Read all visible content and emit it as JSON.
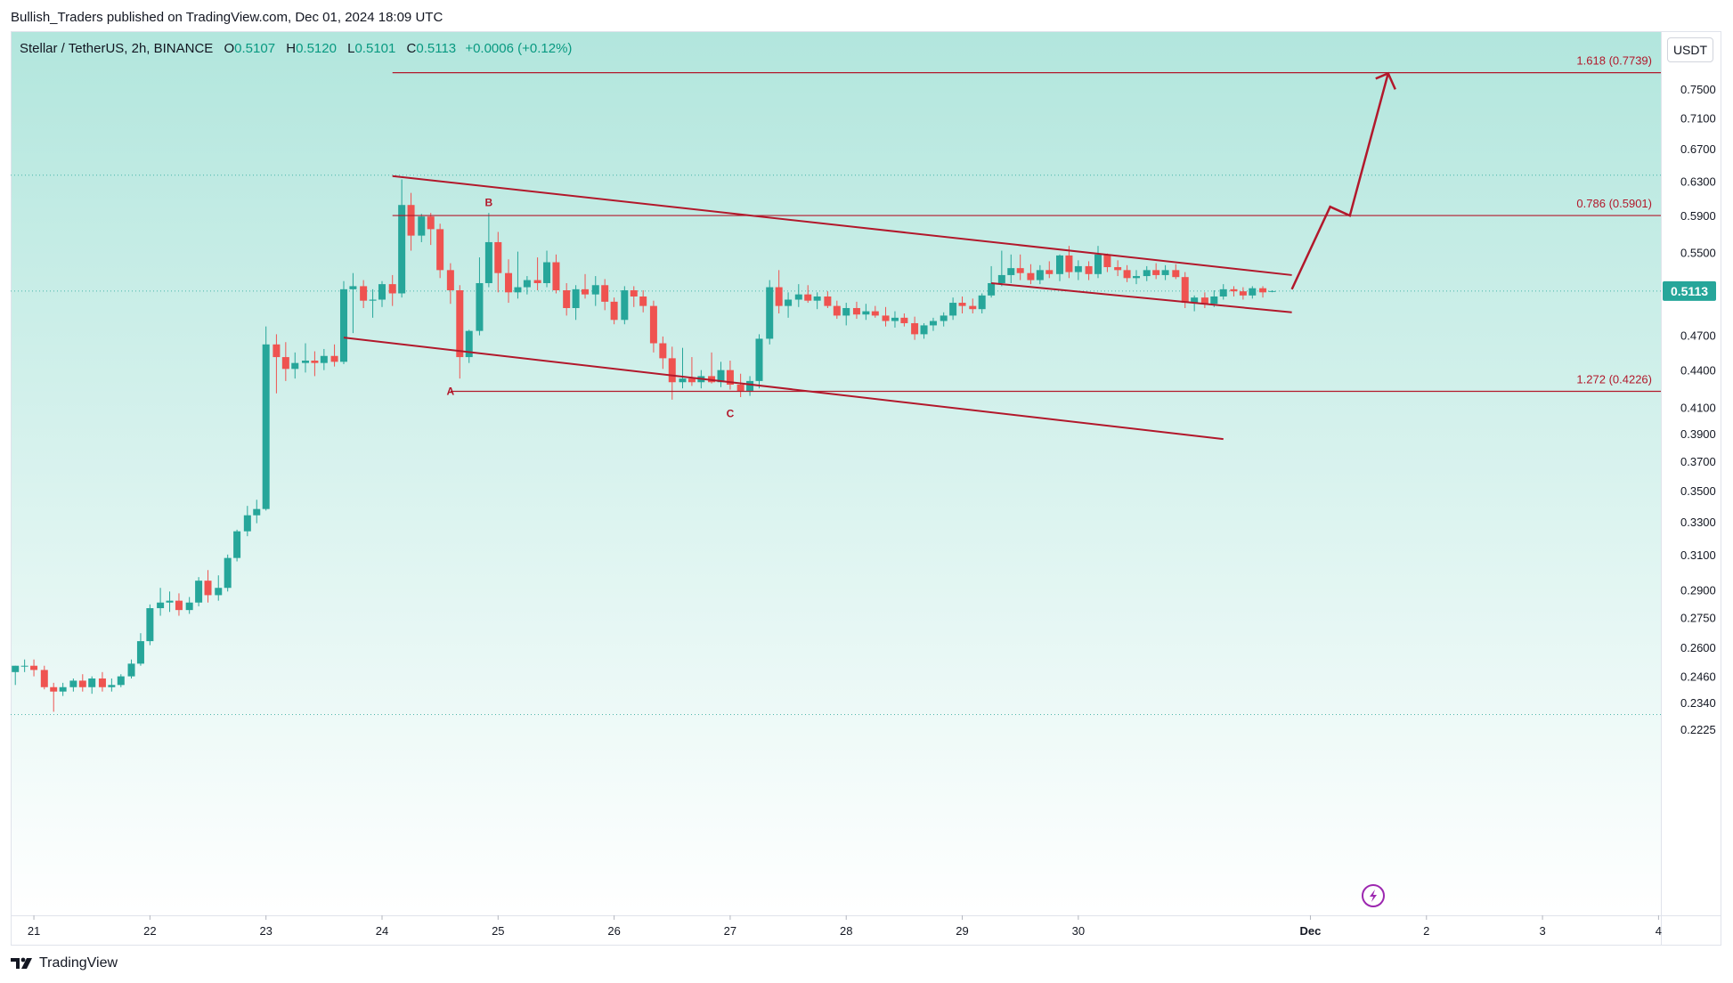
{
  "header": {
    "caption": "Bullish_Traders published on TradingView.com, Dec 01, 2024 18:09 UTC"
  },
  "symbol": {
    "name": "Stellar / TetherUS, 2h, BINANCE",
    "o_label": "O",
    "o_value": "0.5107",
    "h_label": "H",
    "h_value": "0.5120",
    "l_label": "L",
    "l_value": "0.5101",
    "c_label": "C",
    "c_value": "0.5113",
    "change": "+0.0006 (+0.12%)"
  },
  "currency_button": "USDT",
  "brand": {
    "name": "TradingView",
    "logo_icon": "tradingview-logo-icon"
  },
  "colors": {
    "up": "#26a69a",
    "down": "#ef5350",
    "drawing": "#b2182b",
    "bg_top": "#b2e6dd",
    "bg_bottom": "#ffffff",
    "price_label_bg": "#26a69a",
    "flash_icon": "#9c27b0"
  },
  "chart_data": {
    "type": "candlestick",
    "title": "Stellar / TetherUS, 2h, BINANCE",
    "y_scale": "log",
    "ylim": [
      0.2225,
      0.78
    ],
    "y_ticks": [
      "0.7500",
      "0.7100",
      "0.6700",
      "0.6300",
      "0.5900",
      "0.5500",
      "0.4700",
      "0.4400",
      "0.4100",
      "0.3900",
      "0.3700",
      "0.3500",
      "0.3300",
      "0.3100",
      "0.2900",
      "0.2750",
      "0.2600",
      "0.2460",
      "0.2340",
      "0.2225"
    ],
    "x_ticks": [
      "21",
      "22",
      "23",
      "24",
      "25",
      "26",
      "27",
      "28",
      "29",
      "30",
      "Dec",
      "2",
      "3",
      "4"
    ],
    "x_range_days": [
      20.8,
      35.02
    ],
    "last_price": "0.5113",
    "candles": [
      {
        "x": 20.84,
        "o": 0.248,
        "h": 0.251,
        "l": 0.242,
        "c": 0.251
      },
      {
        "x": 20.92,
        "o": 0.251,
        "h": 0.254,
        "l": 0.248,
        "c": 0.251
      },
      {
        "x": 21.0,
        "o": 0.251,
        "h": 0.254,
        "l": 0.246,
        "c": 0.249
      },
      {
        "x": 21.09,
        "o": 0.249,
        "h": 0.251,
        "l": 0.24,
        "c": 0.241
      },
      {
        "x": 21.17,
        "o": 0.241,
        "h": 0.243,
        "l": 0.23,
        "c": 0.239
      },
      {
        "x": 21.25,
        "o": 0.239,
        "h": 0.243,
        "l": 0.237,
        "c": 0.241
      },
      {
        "x": 21.34,
        "o": 0.241,
        "h": 0.245,
        "l": 0.239,
        "c": 0.244
      },
      {
        "x": 21.42,
        "o": 0.244,
        "h": 0.247,
        "l": 0.239,
        "c": 0.241
      },
      {
        "x": 21.5,
        "o": 0.241,
        "h": 0.246,
        "l": 0.238,
        "c": 0.245
      },
      {
        "x": 21.59,
        "o": 0.245,
        "h": 0.248,
        "l": 0.239,
        "c": 0.241
      },
      {
        "x": 21.67,
        "o": 0.241,
        "h": 0.245,
        "l": 0.239,
        "c": 0.242
      },
      {
        "x": 21.75,
        "o": 0.242,
        "h": 0.247,
        "l": 0.241,
        "c": 0.246
      },
      {
        "x": 21.84,
        "o": 0.246,
        "h": 0.254,
        "l": 0.245,
        "c": 0.252
      },
      {
        "x": 21.92,
        "o": 0.252,
        "h": 0.267,
        "l": 0.251,
        "c": 0.263
      },
      {
        "x": 22.0,
        "o": 0.263,
        "h": 0.282,
        "l": 0.261,
        "c": 0.28
      },
      {
        "x": 22.09,
        "o": 0.28,
        "h": 0.291,
        "l": 0.276,
        "c": 0.283
      },
      {
        "x": 22.17,
        "o": 0.283,
        "h": 0.289,
        "l": 0.278,
        "c": 0.284
      },
      {
        "x": 22.25,
        "o": 0.284,
        "h": 0.288,
        "l": 0.276,
        "c": 0.279
      },
      {
        "x": 22.34,
        "o": 0.279,
        "h": 0.286,
        "l": 0.277,
        "c": 0.283
      },
      {
        "x": 22.42,
        "o": 0.283,
        "h": 0.297,
        "l": 0.281,
        "c": 0.295
      },
      {
        "x": 22.5,
        "o": 0.295,
        "h": 0.301,
        "l": 0.283,
        "c": 0.287
      },
      {
        "x": 22.59,
        "o": 0.287,
        "h": 0.298,
        "l": 0.284,
        "c": 0.291
      },
      {
        "x": 22.67,
        "o": 0.291,
        "h": 0.31,
        "l": 0.289,
        "c": 0.308
      },
      {
        "x": 22.75,
        "o": 0.308,
        "h": 0.325,
        "l": 0.306,
        "c": 0.324
      },
      {
        "x": 22.84,
        "o": 0.324,
        "h": 0.34,
        "l": 0.321,
        "c": 0.334
      },
      {
        "x": 22.92,
        "o": 0.334,
        "h": 0.344,
        "l": 0.329,
        "c": 0.338
      },
      {
        "x": 23.0,
        "o": 0.338,
        "h": 0.478,
        "l": 0.337,
        "c": 0.462
      },
      {
        "x": 23.09,
        "o": 0.462,
        "h": 0.471,
        "l": 0.421,
        "c": 0.451
      },
      {
        "x": 23.17,
        "o": 0.451,
        "h": 0.464,
        "l": 0.431,
        "c": 0.441
      },
      {
        "x": 23.25,
        "o": 0.441,
        "h": 0.455,
        "l": 0.433,
        "c": 0.446
      },
      {
        "x": 23.34,
        "o": 0.446,
        "h": 0.463,
        "l": 0.438,
        "c": 0.448
      },
      {
        "x": 23.42,
        "o": 0.448,
        "h": 0.456,
        "l": 0.435,
        "c": 0.446
      },
      {
        "x": 23.5,
        "o": 0.446,
        "h": 0.458,
        "l": 0.44,
        "c": 0.452
      },
      {
        "x": 23.59,
        "o": 0.452,
        "h": 0.462,
        "l": 0.443,
        "c": 0.447
      },
      {
        "x": 23.67,
        "o": 0.447,
        "h": 0.521,
        "l": 0.445,
        "c": 0.513
      },
      {
        "x": 23.75,
        "o": 0.513,
        "h": 0.529,
        "l": 0.472,
        "c": 0.516
      },
      {
        "x": 23.84,
        "o": 0.516,
        "h": 0.522,
        "l": 0.495,
        "c": 0.502
      },
      {
        "x": 23.92,
        "o": 0.502,
        "h": 0.513,
        "l": 0.486,
        "c": 0.503
      },
      {
        "x": 24.0,
        "o": 0.503,
        "h": 0.521,
        "l": 0.496,
        "c": 0.518
      },
      {
        "x": 24.09,
        "o": 0.518,
        "h": 0.527,
        "l": 0.497,
        "c": 0.509
      },
      {
        "x": 24.17,
        "o": 0.509,
        "h": 0.632,
        "l": 0.505,
        "c": 0.602
      },
      {
        "x": 24.25,
        "o": 0.602,
        "h": 0.616,
        "l": 0.552,
        "c": 0.568
      },
      {
        "x": 24.34,
        "o": 0.568,
        "h": 0.592,
        "l": 0.561,
        "c": 0.589
      },
      {
        "x": 24.42,
        "o": 0.589,
        "h": 0.593,
        "l": 0.558,
        "c": 0.575
      },
      {
        "x": 24.5,
        "o": 0.575,
        "h": 0.581,
        "l": 0.524,
        "c": 0.532
      },
      {
        "x": 24.59,
        "o": 0.532,
        "h": 0.539,
        "l": 0.499,
        "c": 0.512
      },
      {
        "x": 24.67,
        "o": 0.512,
        "h": 0.517,
        "l": 0.433,
        "c": 0.451
      },
      {
        "x": 24.75,
        "o": 0.451,
        "h": 0.475,
        "l": 0.446,
        "c": 0.474
      },
      {
        "x": 24.84,
        "o": 0.474,
        "h": 0.545,
        "l": 0.47,
        "c": 0.519
      },
      {
        "x": 24.92,
        "o": 0.519,
        "h": 0.593,
        "l": 0.515,
        "c": 0.561
      },
      {
        "x": 25.0,
        "o": 0.561,
        "h": 0.572,
        "l": 0.51,
        "c": 0.529
      },
      {
        "x": 25.09,
        "o": 0.529,
        "h": 0.543,
        "l": 0.5,
        "c": 0.51
      },
      {
        "x": 25.17,
        "o": 0.51,
        "h": 0.551,
        "l": 0.504,
        "c": 0.515
      },
      {
        "x": 25.25,
        "o": 0.515,
        "h": 0.526,
        "l": 0.508,
        "c": 0.522
      },
      {
        "x": 25.34,
        "o": 0.522,
        "h": 0.545,
        "l": 0.512,
        "c": 0.519
      },
      {
        "x": 25.42,
        "o": 0.519,
        "h": 0.552,
        "l": 0.515,
        "c": 0.54
      },
      {
        "x": 25.5,
        "o": 0.54,
        "h": 0.548,
        "l": 0.509,
        "c": 0.512
      },
      {
        "x": 25.59,
        "o": 0.512,
        "h": 0.519,
        "l": 0.488,
        "c": 0.495
      },
      {
        "x": 25.67,
        "o": 0.495,
        "h": 0.517,
        "l": 0.484,
        "c": 0.513
      },
      {
        "x": 25.75,
        "o": 0.513,
        "h": 0.528,
        "l": 0.504,
        "c": 0.508
      },
      {
        "x": 25.84,
        "o": 0.508,
        "h": 0.526,
        "l": 0.497,
        "c": 0.517
      },
      {
        "x": 25.92,
        "o": 0.517,
        "h": 0.523,
        "l": 0.493,
        "c": 0.501
      },
      {
        "x": 26.0,
        "o": 0.501,
        "h": 0.505,
        "l": 0.48,
        "c": 0.484
      },
      {
        "x": 26.09,
        "o": 0.484,
        "h": 0.516,
        "l": 0.48,
        "c": 0.512
      },
      {
        "x": 26.17,
        "o": 0.512,
        "h": 0.516,
        "l": 0.496,
        "c": 0.506
      },
      {
        "x": 26.25,
        "o": 0.506,
        "h": 0.512,
        "l": 0.491,
        "c": 0.497
      },
      {
        "x": 26.34,
        "o": 0.497,
        "h": 0.502,
        "l": 0.455,
        "c": 0.463
      },
      {
        "x": 26.42,
        "o": 0.463,
        "h": 0.469,
        "l": 0.441,
        "c": 0.45
      },
      {
        "x": 26.5,
        "o": 0.45,
        "h": 0.46,
        "l": 0.416,
        "c": 0.43
      },
      {
        "x": 26.59,
        "o": 0.43,
        "h": 0.459,
        "l": 0.425,
        "c": 0.433
      },
      {
        "x": 26.67,
        "o": 0.433,
        "h": 0.451,
        "l": 0.427,
        "c": 0.43
      },
      {
        "x": 26.75,
        "o": 0.43,
        "h": 0.44,
        "l": 0.425,
        "c": 0.435
      },
      {
        "x": 26.84,
        "o": 0.435,
        "h": 0.455,
        "l": 0.429,
        "c": 0.43
      },
      {
        "x": 26.92,
        "o": 0.43,
        "h": 0.447,
        "l": 0.426,
        "c": 0.44
      },
      {
        "x": 27.0,
        "o": 0.44,
        "h": 0.448,
        "l": 0.424,
        "c": 0.428
      },
      {
        "x": 27.09,
        "o": 0.428,
        "h": 0.437,
        "l": 0.418,
        "c": 0.423
      },
      {
        "x": 27.17,
        "o": 0.423,
        "h": 0.435,
        "l": 0.419,
        "c": 0.431
      },
      {
        "x": 27.25,
        "o": 0.431,
        "h": 0.471,
        "l": 0.425,
        "c": 0.467
      },
      {
        "x": 27.34,
        "o": 0.467,
        "h": 0.522,
        "l": 0.462,
        "c": 0.515
      },
      {
        "x": 27.42,
        "o": 0.515,
        "h": 0.532,
        "l": 0.49,
        "c": 0.497
      },
      {
        "x": 27.5,
        "o": 0.497,
        "h": 0.51,
        "l": 0.486,
        "c": 0.503
      },
      {
        "x": 27.59,
        "o": 0.503,
        "h": 0.518,
        "l": 0.496,
        "c": 0.508
      },
      {
        "x": 27.67,
        "o": 0.508,
        "h": 0.517,
        "l": 0.5,
        "c": 0.502
      },
      {
        "x": 27.75,
        "o": 0.502,
        "h": 0.51,
        "l": 0.494,
        "c": 0.506
      },
      {
        "x": 27.84,
        "o": 0.506,
        "h": 0.511,
        "l": 0.495,
        "c": 0.497
      },
      {
        "x": 27.92,
        "o": 0.497,
        "h": 0.502,
        "l": 0.485,
        "c": 0.488
      },
      {
        "x": 28.0,
        "o": 0.488,
        "h": 0.5,
        "l": 0.479,
        "c": 0.495
      },
      {
        "x": 28.09,
        "o": 0.495,
        "h": 0.501,
        "l": 0.485,
        "c": 0.489
      },
      {
        "x": 28.17,
        "o": 0.489,
        "h": 0.499,
        "l": 0.484,
        "c": 0.492
      },
      {
        "x": 28.25,
        "o": 0.492,
        "h": 0.497,
        "l": 0.486,
        "c": 0.488
      },
      {
        "x": 28.34,
        "o": 0.488,
        "h": 0.496,
        "l": 0.478,
        "c": 0.483
      },
      {
        "x": 28.42,
        "o": 0.483,
        "h": 0.492,
        "l": 0.477,
        "c": 0.486
      },
      {
        "x": 28.5,
        "o": 0.486,
        "h": 0.49,
        "l": 0.478,
        "c": 0.481
      },
      {
        "x": 28.59,
        "o": 0.481,
        "h": 0.487,
        "l": 0.466,
        "c": 0.471
      },
      {
        "x": 28.67,
        "o": 0.471,
        "h": 0.481,
        "l": 0.467,
        "c": 0.479
      },
      {
        "x": 28.75,
        "o": 0.479,
        "h": 0.486,
        "l": 0.474,
        "c": 0.483
      },
      {
        "x": 28.84,
        "o": 0.483,
        "h": 0.491,
        "l": 0.478,
        "c": 0.488
      },
      {
        "x": 28.92,
        "o": 0.488,
        "h": 0.505,
        "l": 0.484,
        "c": 0.5
      },
      {
        "x": 29.0,
        "o": 0.5,
        "h": 0.506,
        "l": 0.49,
        "c": 0.497
      },
      {
        "x": 29.09,
        "o": 0.497,
        "h": 0.504,
        "l": 0.49,
        "c": 0.494
      },
      {
        "x": 29.17,
        "o": 0.494,
        "h": 0.509,
        "l": 0.49,
        "c": 0.507
      },
      {
        "x": 29.25,
        "o": 0.507,
        "h": 0.536,
        "l": 0.505,
        "c": 0.519
      },
      {
        "x": 29.34,
        "o": 0.519,
        "h": 0.552,
        "l": 0.516,
        "c": 0.527
      },
      {
        "x": 29.42,
        "o": 0.527,
        "h": 0.548,
        "l": 0.519,
        "c": 0.534
      },
      {
        "x": 29.5,
        "o": 0.534,
        "h": 0.548,
        "l": 0.522,
        "c": 0.529
      },
      {
        "x": 29.59,
        "o": 0.529,
        "h": 0.538,
        "l": 0.518,
        "c": 0.522
      },
      {
        "x": 29.67,
        "o": 0.522,
        "h": 0.537,
        "l": 0.518,
        "c": 0.532
      },
      {
        "x": 29.75,
        "o": 0.532,
        "h": 0.541,
        "l": 0.524,
        "c": 0.528
      },
      {
        "x": 29.84,
        "o": 0.528,
        "h": 0.548,
        "l": 0.521,
        "c": 0.547
      },
      {
        "x": 29.92,
        "o": 0.547,
        "h": 0.557,
        "l": 0.524,
        "c": 0.53
      },
      {
        "x": 30.0,
        "o": 0.53,
        "h": 0.542,
        "l": 0.522,
        "c": 0.536
      },
      {
        "x": 30.09,
        "o": 0.536,
        "h": 0.541,
        "l": 0.522,
        "c": 0.528
      },
      {
        "x": 30.17,
        "o": 0.528,
        "h": 0.557,
        "l": 0.524,
        "c": 0.548
      },
      {
        "x": 30.25,
        "o": 0.548,
        "h": 0.549,
        "l": 0.53,
        "c": 0.535
      },
      {
        "x": 30.34,
        "o": 0.535,
        "h": 0.542,
        "l": 0.526,
        "c": 0.532
      },
      {
        "x": 30.42,
        "o": 0.532,
        "h": 0.537,
        "l": 0.52,
        "c": 0.524
      },
      {
        "x": 30.5,
        "o": 0.524,
        "h": 0.532,
        "l": 0.518,
        "c": 0.526
      },
      {
        "x": 30.59,
        "o": 0.526,
        "h": 0.536,
        "l": 0.521,
        "c": 0.532
      },
      {
        "x": 30.67,
        "o": 0.532,
        "h": 0.539,
        "l": 0.523,
        "c": 0.527
      },
      {
        "x": 30.75,
        "o": 0.527,
        "h": 0.537,
        "l": 0.522,
        "c": 0.532
      },
      {
        "x": 30.84,
        "o": 0.532,
        "h": 0.538,
        "l": 0.523,
        "c": 0.525
      },
      {
        "x": 30.92,
        "o": 0.525,
        "h": 0.53,
        "l": 0.495,
        "c": 0.5
      },
      {
        "x": 31.0,
        "o": 0.5,
        "h": 0.507,
        "l": 0.492,
        "c": 0.505
      },
      {
        "x": 31.09,
        "o": 0.505,
        "h": 0.51,
        "l": 0.495,
        "c": 0.499
      },
      {
        "x": 31.17,
        "o": 0.499,
        "h": 0.512,
        "l": 0.496,
        "c": 0.506
      },
      {
        "x": 31.25,
        "o": 0.506,
        "h": 0.518,
        "l": 0.503,
        "c": 0.513
      },
      {
        "x": 31.34,
        "o": 0.513,
        "h": 0.516,
        "l": 0.506,
        "c": 0.511
      },
      {
        "x": 31.42,
        "o": 0.511,
        "h": 0.515,
        "l": 0.503,
        "c": 0.507
      },
      {
        "x": 31.5,
        "o": 0.507,
        "h": 0.516,
        "l": 0.504,
        "c": 0.514
      },
      {
        "x": 31.59,
        "o": 0.514,
        "h": 0.516,
        "l": 0.505,
        "c": 0.51
      },
      {
        "x": 31.67,
        "o": 0.5107,
        "h": 0.512,
        "l": 0.5101,
        "c": 0.5113
      }
    ],
    "annotations": {
      "fib_levels": [
        {
          "label": "1.618 (0.7739)",
          "price": 0.7739,
          "x_start": 24.09
        },
        {
          "label": "0.786 (0.5901)",
          "price": 0.5901,
          "x_start": 24.09
        },
        {
          "label": "1.272 (0.4226)",
          "price": 0.4226,
          "x_start": 24.59
        }
      ],
      "wave_labels": [
        {
          "text": "B",
          "x": 24.92,
          "price": 0.605
        },
        {
          "text": "A",
          "x": 24.59,
          "price": 0.4226
        },
        {
          "text": "C",
          "x": 27.0,
          "price": 0.405
        }
      ],
      "channel_lines": [
        {
          "x1": 24.09,
          "p1": 0.636,
          "x2": 31.84,
          "p2": 0.527
        },
        {
          "x1": 23.67,
          "p1": 0.468,
          "x2": 31.25,
          "p2": 0.386
        },
        {
          "x1": 29.25,
          "p1": 0.519,
          "x2": 31.84,
          "p2": 0.491
        }
      ],
      "projection_path": [
        {
          "x": 31.84,
          "p": 0.513
        },
        {
          "x": 32.17,
          "p": 0.6
        },
        {
          "x": 32.34,
          "p": 0.59
        },
        {
          "x": 32.67,
          "p": 0.773
        }
      ],
      "horizontal_dotted_prices": [
        0.637,
        0.5113,
        0.2288
      ]
    }
  }
}
